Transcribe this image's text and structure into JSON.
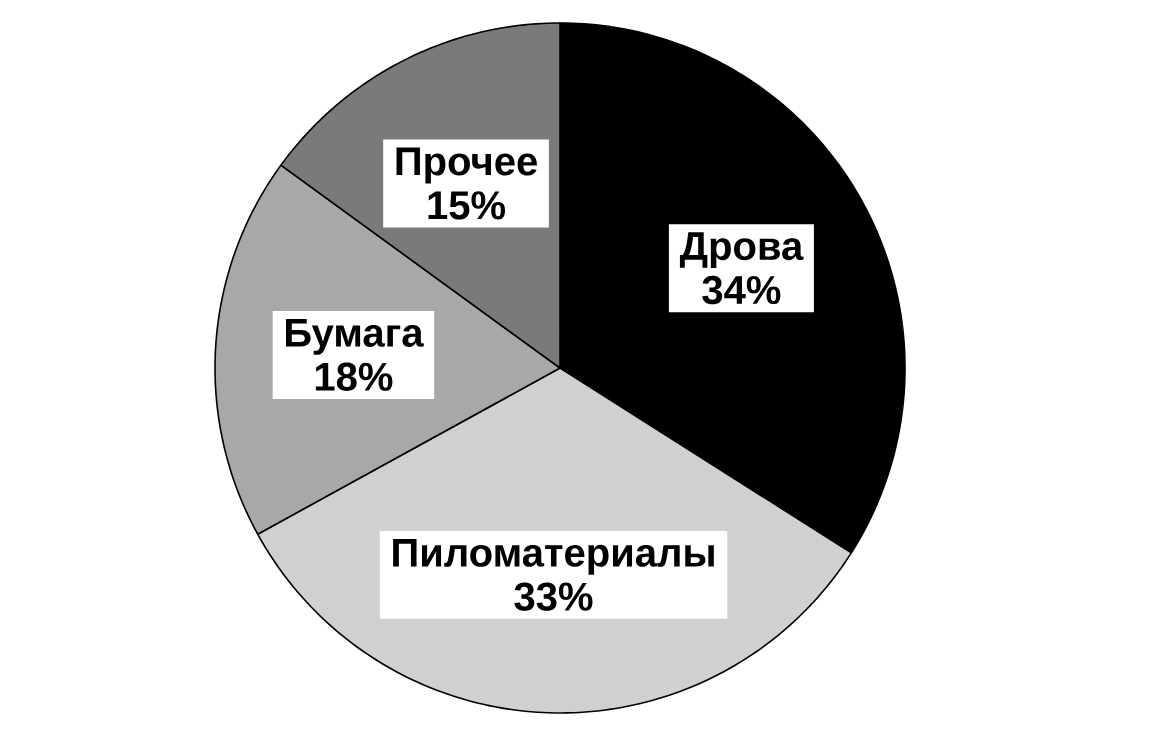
{
  "chart_data": {
    "type": "pie",
    "categories": [
      "Дрова",
      "Пиломатериалы",
      "Бумага",
      "Прочее"
    ],
    "values": [
      34,
      33,
      18,
      15
    ],
    "value_labels": [
      "34%",
      "33%",
      "18%",
      "15%"
    ],
    "colors": [
      "#000000",
      "#d0d0d0",
      "#a8a8a8",
      "#7a7a7a"
    ]
  }
}
